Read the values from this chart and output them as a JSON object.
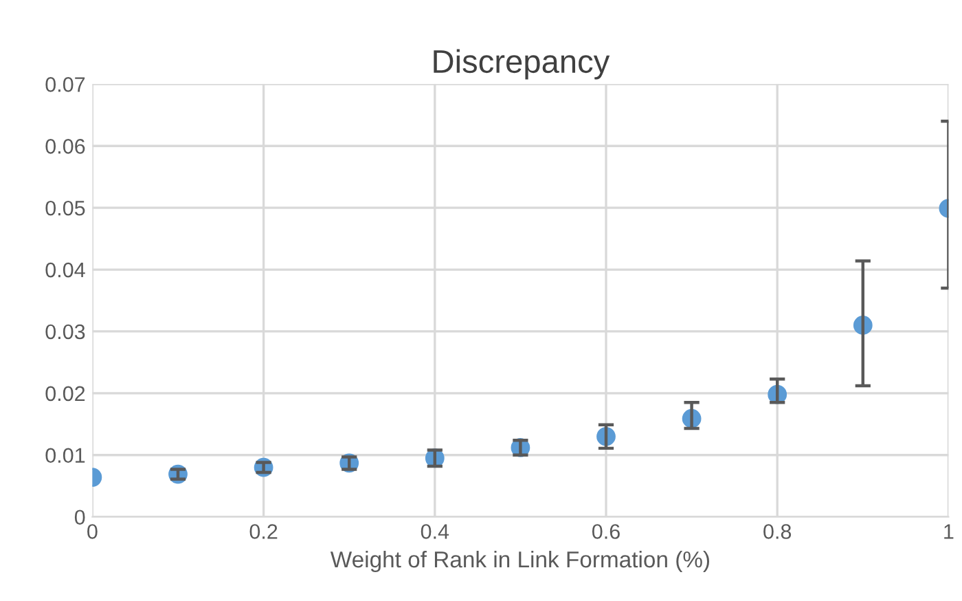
{
  "chart_data": {
    "type": "scatter",
    "title": "Discrepancy",
    "xlabel": "Weight of Rank in Link Formation (%)",
    "x": [
      0,
      0.1,
      0.2,
      0.3,
      0.4,
      0.5,
      0.6,
      0.7,
      0.8,
      0.9,
      1
    ],
    "series": [
      {
        "color": "#5b9bd5",
        "values": [
          0.0064,
          0.0069,
          0.008,
          0.0087,
          0.0095,
          0.0112,
          0.013,
          0.0159,
          0.0198,
          0.031,
          0.0499
        ],
        "errors": [
          null,
          0.0008,
          0.0008,
          0.001,
          0.0013,
          0.0012,
          0.0019,
          [
            0.0143,
            0.0185
          ],
          [
            0.0185,
            0.0223
          ],
          [
            0.0212,
            0.0414
          ],
          [
            0.037,
            0.064
          ]
        ]
      }
    ],
    "xlim": [
      0,
      1
    ],
    "xticks": [
      0,
      0.2,
      0.4,
      0.6,
      0.8,
      1
    ],
    "ylim": [
      0,
      0.07
    ],
    "yticks": [
      0,
      0.01,
      0.02,
      0.03,
      0.04,
      0.05,
      0.06,
      0.07
    ],
    "grid": true,
    "marker": "circle"
  }
}
